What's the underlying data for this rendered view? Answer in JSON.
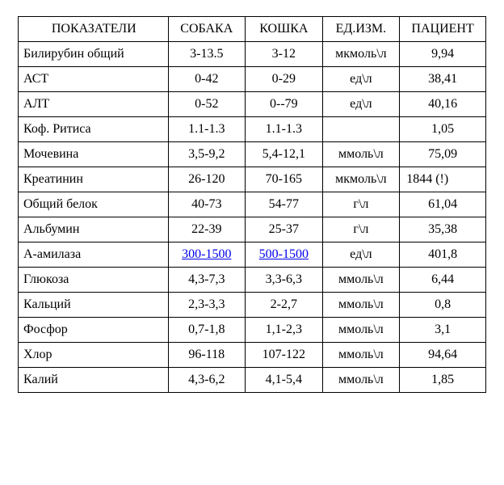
{
  "table": {
    "headers": {
      "parameter": "ПОКАЗАТЕЛИ",
      "dog": "СОБАКА",
      "cat": "КОШКА",
      "unit": "ЕД.ИЗМ.",
      "patient": "ПАЦИЕНТ"
    },
    "rows": [
      {
        "param": "Билирубин общий",
        "dog": "3-13.5",
        "cat": "3-12",
        "unit": "мкмоль\\л",
        "patient": "9,94"
      },
      {
        "param": "АСТ",
        "dog": "0-42",
        "cat": "0-29",
        "unit": "ед\\л",
        "patient": "38,41"
      },
      {
        "param": "АЛТ",
        "dog": "0-52",
        "cat": "0--79",
        "unit": "ед\\л",
        "patient": "40,16"
      },
      {
        "param": "Коф. Ритиса",
        "dog": "1.1-1.3",
        "cat": "1.1-1.3",
        "unit": "",
        "patient": "1,05"
      },
      {
        "param": "Мочевина",
        "dog": "3,5-9,2",
        "cat": "5,4-12,1",
        "unit": "ммоль\\л",
        "patient": "75,09"
      },
      {
        "param": "Креатинин",
        "dog": "26-120",
        "cat": "70-165",
        "unit": "мкмоль\\л",
        "patient": "1844    (!)",
        "patientSpecial": true
      },
      {
        "param": "Общий белок",
        "dog": "40-73",
        "cat": "54-77",
        "unit": "г\\л",
        "patient": "61,04"
      },
      {
        "param": "Альбумин",
        "dog": "22-39",
        "cat": "25-37",
        "unit": "г\\л",
        "patient": "35,38"
      },
      {
        "param": "А-амилаза",
        "dog": "300-1500",
        "cat": "500-1500",
        "unit": "ед\\л",
        "patient": "401,8",
        "dogLink": true,
        "catLink": true
      },
      {
        "param": "Глюкоза",
        "dog": "4,3-7,3",
        "cat": "3,3-6,3",
        "unit": "ммоль\\л",
        "patient": "6,44"
      },
      {
        "param": "Кальций",
        "dog": "2,3-3,3",
        "cat": "2-2,7",
        "unit": "ммоль\\л",
        "patient": "0,8"
      },
      {
        "param": "Фосфор",
        "dog": "0,7-1,8",
        "cat": "1,1-2,3",
        "unit": "ммоль\\л",
        "patient": "3,1"
      },
      {
        "param": "Хлор",
        "dog": "96-118",
        "cat": "107-122",
        "unit": "ммоль\\л",
        "patient": "94,64"
      },
      {
        "param": "Калий",
        "dog": "4,3-6,2",
        "cat": "4,1-5,4",
        "unit": "ммоль\\л",
        "patient": "1,85"
      }
    ]
  },
  "styling": {
    "font_family": "Times New Roman",
    "font_size_pt": 12,
    "border_color": "#000000",
    "background_color": "#ffffff",
    "link_color": "#0000ee",
    "text_color": "#000000"
  }
}
